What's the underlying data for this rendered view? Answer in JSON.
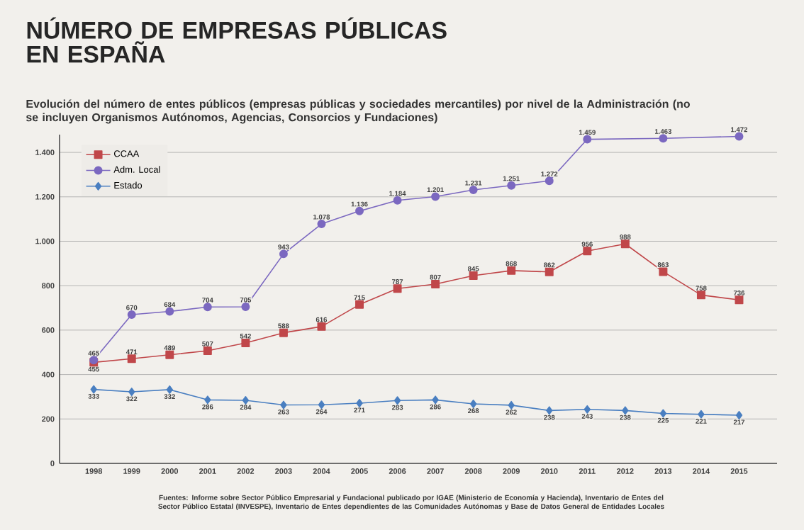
{
  "chart_data": {
    "type": "line",
    "title": "NÚMERO DE EMPRESAS PÚBLICAS EN ESPAÑA",
    "subtitle": "Evolución del número de entes públicos (empresas públicas y sociedades mercantiles) por nivel de la Administración (no se incluyen Organismos Autónomos, Agencias, Consorcios y Fundaciones)",
    "annotations": [
      "Fuentes: Informe sobre Sector Público Empresarial y Fundacional publicado por IGAE (Ministerio de Economía y Hacienda), Inventario de Entes del Sector Público Estatal (INVESPE), Inventario de Entes dependientes de las Comunidades Autónomas y Base de Datos General de Entidades Locales"
    ],
    "x": [
      1998,
      1999,
      2000,
      2001,
      2002,
      2003,
      2004,
      2005,
      2006,
      2007,
      2008,
      2009,
      2010,
      2011,
      2012,
      2013,
      2014,
      2015
    ],
    "xlim": [
      1997.1,
      2016
    ],
    "xticks": [
      1998,
      1999,
      2000,
      2001,
      2002,
      2003,
      2004,
      2005,
      2006,
      2007,
      2008,
      2009,
      2010,
      2011,
      2012,
      2013,
      2014,
      2015
    ],
    "ylim": [
      0,
      1480
    ],
    "yticks": [
      0,
      200,
      400,
      600,
      800,
      {
        "value": 1000,
        "label": "1.000"
      },
      {
        "value": 1200,
        "label": "1.200"
      },
      {
        "value": 1400,
        "label": "1.400"
      }
    ],
    "grid": "y",
    "legend": "top left",
    "series": [
      {
        "name": "CCAA",
        "color": "#c0474a",
        "marker": "square",
        "values": [
          455,
          471,
          489,
          507,
          542,
          588,
          616,
          715,
          787,
          807,
          845,
          868,
          862,
          956,
          988,
          863,
          758,
          736
        ],
        "value_labels": [
          "455",
          "471",
          "489",
          "507",
          "542",
          "588",
          "616",
          "715",
          "787",
          "807",
          "845",
          "868",
          "862",
          "956",
          "988",
          "863",
          "758",
          "736"
        ]
      },
      {
        "name": "Adm. Local",
        "color": "#7b68c0",
        "marker": "circle",
        "x": [
          1998,
          1999,
          2000,
          2001,
          2002,
          2003,
          2004,
          2005,
          2006,
          2007,
          2008,
          2009,
          2010,
          2011,
          2013,
          2015
        ],
        "values": [
          465,
          670,
          684,
          704,
          705,
          943,
          1078,
          1136,
          1184,
          1201,
          1231,
          1251,
          1272,
          1459,
          1463,
          1472
        ],
        "value_labels": [
          "465",
          "670",
          "684",
          "704",
          "705",
          "943",
          "1.078",
          "1.136",
          "1.184",
          "1.201",
          "1.231",
          "1.251",
          "1.272",
          "1.459",
          "1.463",
          "1.472"
        ]
      },
      {
        "name": "Estado",
        "color": "#4a7fc1",
        "marker": "diamond",
        "values": [
          333,
          322,
          332,
          286,
          284,
          263,
          264,
          271,
          283,
          286,
          268,
          262,
          238,
          243,
          238,
          225,
          221,
          217
        ],
        "value_labels": [
          "333",
          "322",
          "332",
          "286",
          "284",
          "263",
          "264",
          "271",
          "283",
          "286",
          "268",
          "262",
          "238",
          "243",
          "238",
          "225",
          "221",
          "217"
        ]
      }
    ]
  }
}
